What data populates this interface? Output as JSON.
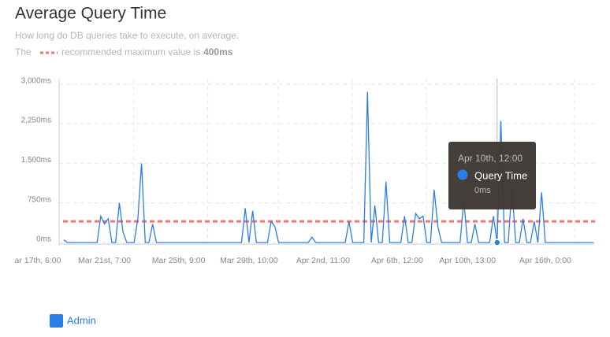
{
  "chart_data": {
    "type": "line",
    "title": "Average Query Time",
    "subtitle": "How long do DB queries take to execute, on average.",
    "reference_line": {
      "value": 400,
      "label": "400ms",
      "color": "#f07575",
      "prefix": "The",
      "suffix": "recommended maximum value is"
    },
    "categories": [
      "ar 17th, 6:00",
      null,
      null,
      null,
      null,
      null,
      null,
      null,
      null,
      null,
      null,
      null,
      null,
      null,
      null,
      null,
      null,
      null,
      "Mar 21st, 7:00",
      null,
      null,
      null,
      null,
      null,
      null,
      null,
      null,
      null,
      null,
      null,
      null,
      null,
      null,
      null,
      null,
      null,
      null,
      null,
      "Mar 25th, 9:00",
      null,
      null,
      null,
      null,
      null,
      null,
      null,
      null,
      null,
      null,
      null,
      null,
      null,
      null,
      null,
      null,
      null,
      null,
      "Mar 29th, 10:00",
      null,
      null,
      null,
      null,
      null,
      null,
      null,
      null,
      null,
      null,
      null,
      null,
      null,
      null,
      null,
      null,
      null,
      null,
      null,
      "Apr 2nd, 11:00",
      null,
      null,
      null,
      null,
      null,
      null,
      null,
      null,
      null,
      null,
      null,
      null,
      null,
      null,
      null,
      null,
      null,
      null,
      null,
      "Apr 6th, 12:00",
      null,
      null,
      null,
      null,
      null,
      null,
      null,
      null,
      null,
      null,
      null,
      null,
      null,
      null,
      null,
      null,
      null,
      null,
      "Apr 10th, 13:00",
      null,
      null,
      null,
      null,
      null,
      null,
      null,
      null,
      null,
      null,
      null,
      null,
      null,
      null,
      null,
      null,
      null,
      null,
      null,
      null,
      "Apr 16th, 0:00",
      null,
      null,
      null,
      null,
      null,
      null,
      null,
      null,
      null,
      null,
      null,
      null,
      null
    ],
    "series": [
      {
        "name": "Admin",
        "color": "#2b7de9",
        "values": [
          null,
          null,
          null,
          null,
          null,
          null,
          null,
          50,
          0,
          0,
          0,
          0,
          0,
          0,
          0,
          0,
          0,
          500,
          350,
          450,
          0,
          0,
          750,
          200,
          0,
          0,
          0,
          450,
          1500,
          0,
          0,
          350,
          0,
          0,
          0,
          0,
          0,
          0,
          0,
          0,
          0,
          0,
          0,
          0,
          0,
          0,
          0,
          0,
          0,
          0,
          0,
          0,
          0,
          0,
          0,
          0,
          650,
          0,
          600,
          0,
          0,
          0,
          0,
          400,
          300,
          0,
          0,
          0,
          0,
          0,
          0,
          0,
          0,
          0,
          100,
          0,
          0,
          0,
          0,
          0,
          0,
          0,
          0,
          0,
          400,
          0,
          0,
          0,
          0,
          2850,
          0,
          700,
          0,
          0,
          1150,
          0,
          0,
          0,
          0,
          500,
          0,
          0,
          550,
          450,
          500,
          0,
          0,
          1000,
          300,
          0,
          0,
          0,
          0,
          0,
          0,
          800,
          0,
          0,
          350,
          0,
          0,
          0,
          0,
          500,
          0,
          2300,
          0,
          0,
          1050,
          0,
          0,
          450,
          0,
          0,
          400,
          0,
          950,
          0,
          0,
          0,
          0,
          0,
          0,
          0,
          0,
          0,
          0,
          0,
          0,
          0,
          0
        ]
      }
    ],
    "ylim": [
      0,
      3100
    ],
    "yticks": [
      {
        "value": 0,
        "label": "0ms"
      },
      {
        "value": 750,
        "label": "750ms"
      },
      {
        "value": 1500,
        "label": "1,500ms"
      },
      {
        "value": 2250,
        "label": "2,250ms"
      },
      {
        "value": 3000,
        "label": "3,000ms"
      }
    ],
    "grid": true,
    "tooltip": {
      "index": 124,
      "category": "Apr 10th, 12:00",
      "series": "Query Time",
      "value": 0,
      "label": "0ms"
    }
  }
}
